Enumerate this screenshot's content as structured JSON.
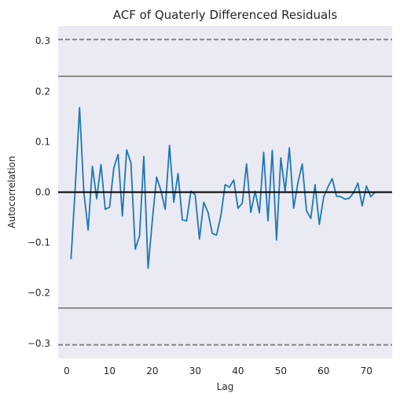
{
  "chart_data": {
    "type": "line",
    "title": "ACF of Quaterly Differenced Residuals",
    "xlabel": "Lag",
    "ylabel": "Autocorrelation",
    "xlim": [
      -2,
      76
    ],
    "ylim": [
      -0.33,
      0.33
    ],
    "xticks": [
      0,
      10,
      20,
      30,
      40,
      50,
      60,
      70
    ],
    "yticks": [
      -0.3,
      -0.2,
      -0.1,
      0.0,
      0.1,
      0.2,
      0.3
    ],
    "ytick_labels": [
      "−0.3",
      "−0.2",
      "−0.1",
      "0.0",
      "0.1",
      "0.2",
      "0.3"
    ],
    "grid": false,
    "background_color": "#eaeaf2",
    "line_color": "#1f77b4",
    "confidence_lines": [
      {
        "value": 0.303,
        "style": "dashed",
        "color": "#808080"
      },
      {
        "value": -0.303,
        "style": "dashed",
        "color": "#808080"
      },
      {
        "value": 0.23,
        "style": "solid",
        "color": "#808080"
      },
      {
        "value": -0.23,
        "style": "solid",
        "color": "#808080"
      },
      {
        "value": 0.0,
        "style": "solid",
        "color": "#000000"
      }
    ],
    "series": [
      {
        "x": [
          1,
          2,
          3,
          4,
          5,
          6,
          7,
          8,
          9,
          10,
          11,
          12,
          13,
          14,
          15,
          16,
          17,
          18,
          19,
          20,
          21,
          22,
          23,
          24,
          25,
          26,
          27,
          28,
          29,
          30,
          31,
          32,
          33,
          34,
          35,
          36,
          37,
          38,
          39,
          40,
          41,
          42,
          43,
          44,
          45,
          46,
          47,
          48,
          49,
          50,
          51,
          52,
          53,
          54,
          55,
          56,
          57,
          58,
          59,
          60,
          61,
          62,
          63,
          64,
          65,
          66,
          67,
          68,
          69,
          70,
          71,
          72
        ],
        "values": [
          -0.133,
          0.01,
          0.168,
          0.0,
          -0.075,
          0.051,
          -0.013,
          0.055,
          -0.034,
          -0.03,
          0.048,
          0.075,
          -0.047,
          0.084,
          0.058,
          -0.113,
          -0.087,
          0.071,
          -0.151,
          -0.055,
          0.03,
          0.003,
          -0.034,
          0.093,
          -0.02,
          0.037,
          -0.055,
          -0.057,
          0.002,
          -0.005,
          -0.093,
          -0.02,
          -0.04,
          -0.082,
          -0.085,
          -0.047,
          0.015,
          0.01,
          0.024,
          -0.032,
          -0.022,
          0.056,
          -0.04,
          0.002,
          -0.041,
          0.079,
          -0.057,
          0.083,
          -0.095,
          0.068,
          0.002,
          0.088,
          -0.032,
          0.019,
          0.056,
          -0.037,
          -0.052,
          0.015,
          -0.064,
          -0.01,
          0.01,
          0.027,
          -0.008,
          -0.009,
          -0.014,
          -0.012,
          -0.001,
          0.018,
          -0.027,
          0.012,
          -0.009,
          0.0
        ]
      }
    ]
  }
}
